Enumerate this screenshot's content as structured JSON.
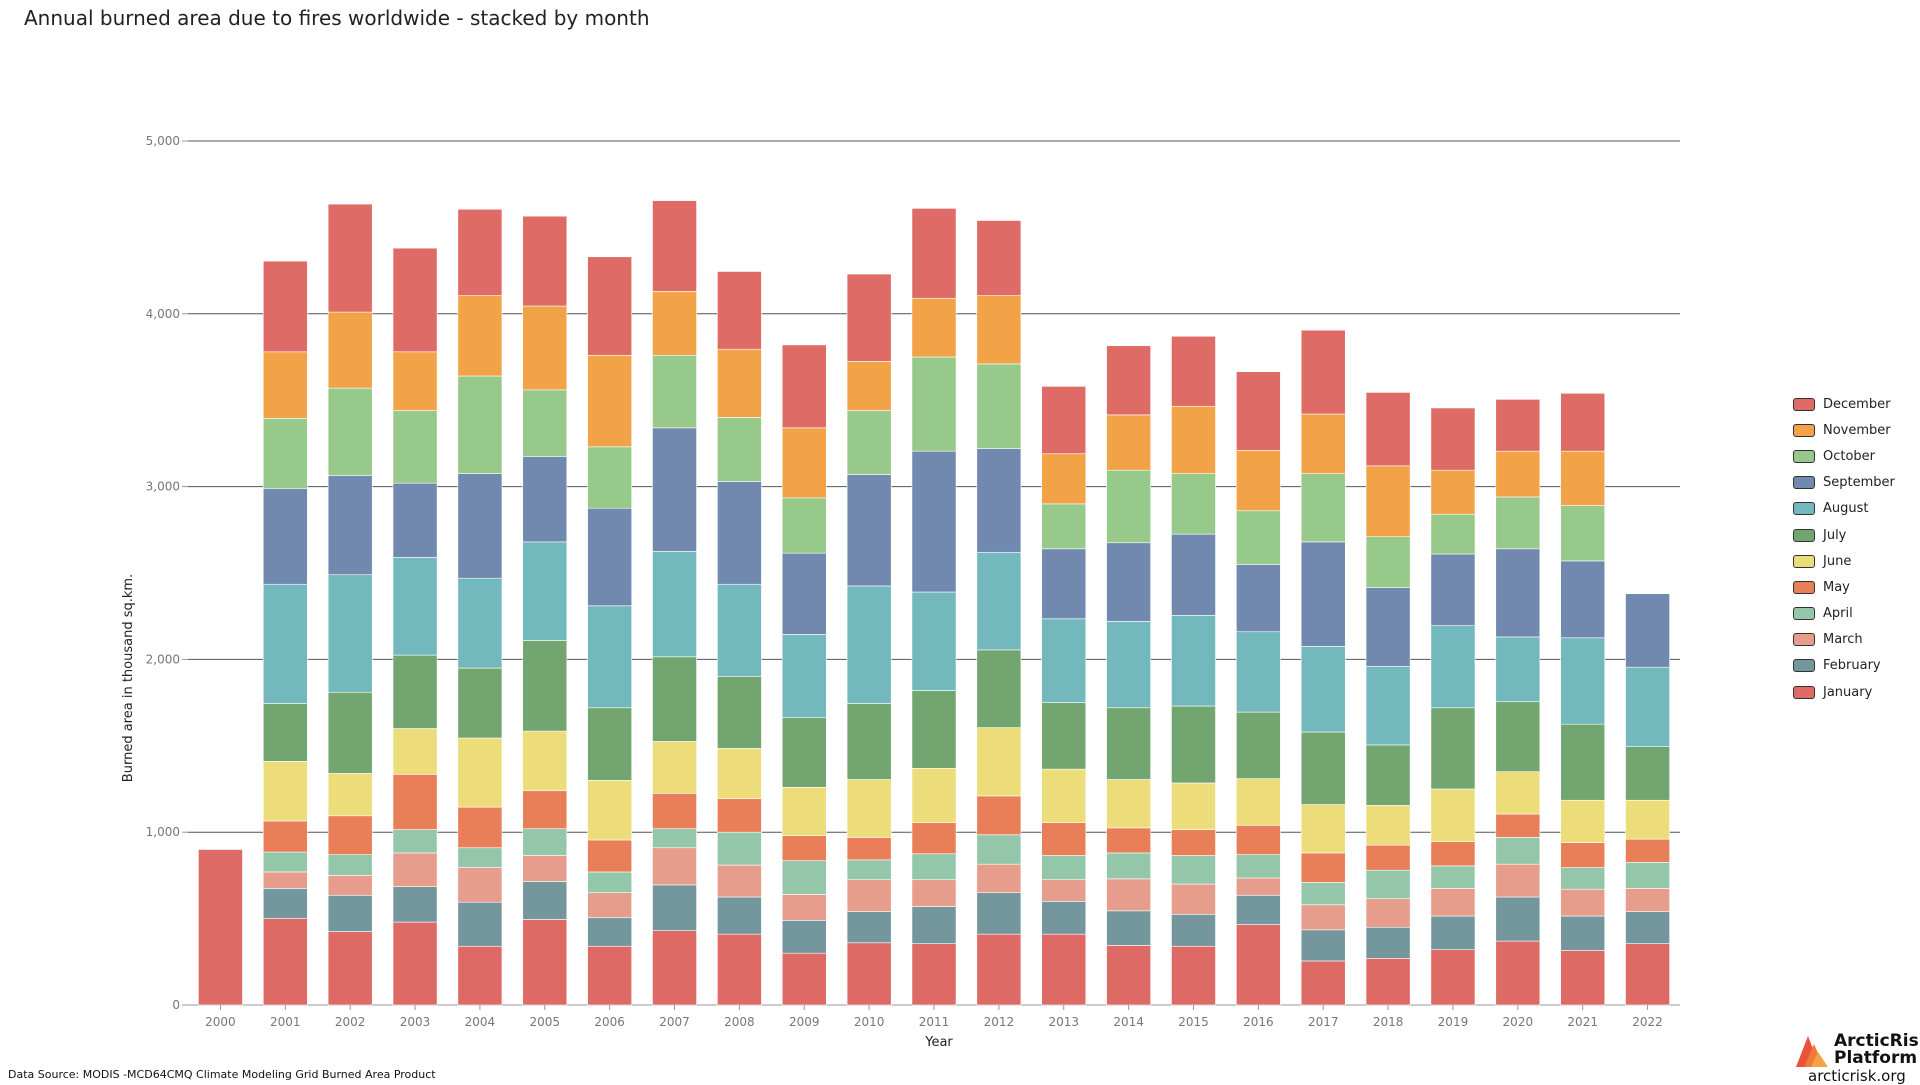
{
  "title": "Annual burned area due to fires worldwide - stacked by month",
  "source_text": "Data Source: MODIS -MCD64CMQ Climate Modeling Grid Burned Area Product",
  "logo": {
    "name_line1": "ArcticRisk",
    "name_line2": "Platform",
    "url": "arcticrisk.org"
  },
  "chart_data": {
    "type": "bar",
    "stacked": true,
    "title": "Annual burned area due to fires worldwide - stacked by month",
    "xlabel": "Year",
    "ylabel": "Burned area in thousand sq.km.",
    "ylim": [
      0,
      5000
    ],
    "yticks": [
      0,
      1000,
      2000,
      3000,
      4000,
      5000
    ],
    "ytick_labels": [
      "0",
      "1,000",
      "2,000",
      "3,000",
      "4,000",
      "5,000"
    ],
    "grid": "horizontal",
    "legend_position": "right",
    "categories": [
      "2000",
      "2001",
      "2002",
      "2003",
      "2004",
      "2005",
      "2006",
      "2007",
      "2008",
      "2009",
      "2010",
      "2011",
      "2012",
      "2013",
      "2014",
      "2015",
      "2016",
      "2017",
      "2018",
      "2019",
      "2020",
      "2021",
      "2022"
    ],
    "series": [
      {
        "name": "January",
        "color": "#de6a65",
        "values": [
          0,
          500,
          425,
          480,
          340,
          495,
          340,
          430,
          410,
          300,
          360,
          355,
          410,
          410,
          345,
          340,
          465,
          255,
          270,
          320,
          370,
          315,
          355
        ]
      },
      {
        "name": "February",
        "color": "#74979e",
        "values": [
          0,
          175,
          210,
          205,
          255,
          220,
          165,
          265,
          215,
          190,
          180,
          215,
          240,
          190,
          200,
          185,
          170,
          180,
          180,
          195,
          255,
          200,
          185
        ]
      },
      {
        "name": "March",
        "color": "#e79d8b",
        "values": [
          0,
          95,
          115,
          195,
          200,
          150,
          145,
          215,
          185,
          150,
          185,
          155,
          165,
          125,
          185,
          175,
          100,
          145,
          165,
          160,
          190,
          155,
          135
        ]
      },
      {
        "name": "April",
        "color": "#94c7aa",
        "values": [
          0,
          115,
          120,
          135,
          115,
          155,
          120,
          110,
          190,
          195,
          115,
          150,
          170,
          140,
          150,
          165,
          135,
          130,
          165,
          130,
          155,
          125,
          150
        ]
      },
      {
        "name": "May",
        "color": "#e87f58",
        "values": [
          0,
          180,
          225,
          320,
          235,
          220,
          185,
          205,
          195,
          145,
          130,
          180,
          225,
          190,
          145,
          150,
          170,
          170,
          145,
          140,
          135,
          145,
          135
        ]
      },
      {
        "name": "June",
        "color": "#eddd7a",
        "values": [
          0,
          345,
          245,
          265,
          400,
          345,
          345,
          300,
          290,
          280,
          335,
          315,
          395,
          310,
          280,
          270,
          270,
          280,
          230,
          305,
          245,
          245,
          225
        ]
      },
      {
        "name": "July",
        "color": "#72a56f",
        "values": [
          0,
          335,
          470,
          425,
          405,
          525,
          420,
          490,
          415,
          405,
          440,
          450,
          450,
          385,
          415,
          445,
          385,
          420,
          350,
          470,
          405,
          440,
          310
        ]
      },
      {
        "name": "August",
        "color": "#73b8bd",
        "values": [
          0,
          690,
          680,
          565,
          520,
          570,
          590,
          610,
          535,
          480,
          680,
          570,
          565,
          485,
          500,
          525,
          465,
          495,
          455,
          475,
          375,
          500,
          460
        ]
      },
      {
        "name": "September",
        "color": "#7189ae",
        "values": [
          0,
          555,
          575,
          430,
          605,
          495,
          565,
          715,
          595,
          470,
          645,
          815,
          600,
          405,
          455,
          470,
          390,
          605,
          455,
          415,
          510,
          445,
          425
        ]
      },
      {
        "name": "October",
        "color": "#96c98a",
        "values": [
          0,
          405,
          505,
          420,
          565,
          385,
          355,
          420,
          370,
          320,
          370,
          545,
          490,
          260,
          420,
          350,
          310,
          395,
          295,
          230,
          300,
          320,
          0
        ]
      },
      {
        "name": "November",
        "color": "#f2a247",
        "values": [
          0,
          385,
          440,
          340,
          465,
          485,
          530,
          370,
          395,
          405,
          285,
          340,
          395,
          290,
          320,
          390,
          350,
          345,
          410,
          255,
          265,
          315,
          0
        ]
      },
      {
        "name": "December",
        "color": "#df6b66",
        "values": [
          900,
          525,
          625,
          600,
          500,
          520,
          570,
          525,
          450,
          480,
          505,
          520,
          435,
          390,
          400,
          405,
          455,
          485,
          425,
          360,
          300,
          335,
          0
        ]
      }
    ]
  }
}
